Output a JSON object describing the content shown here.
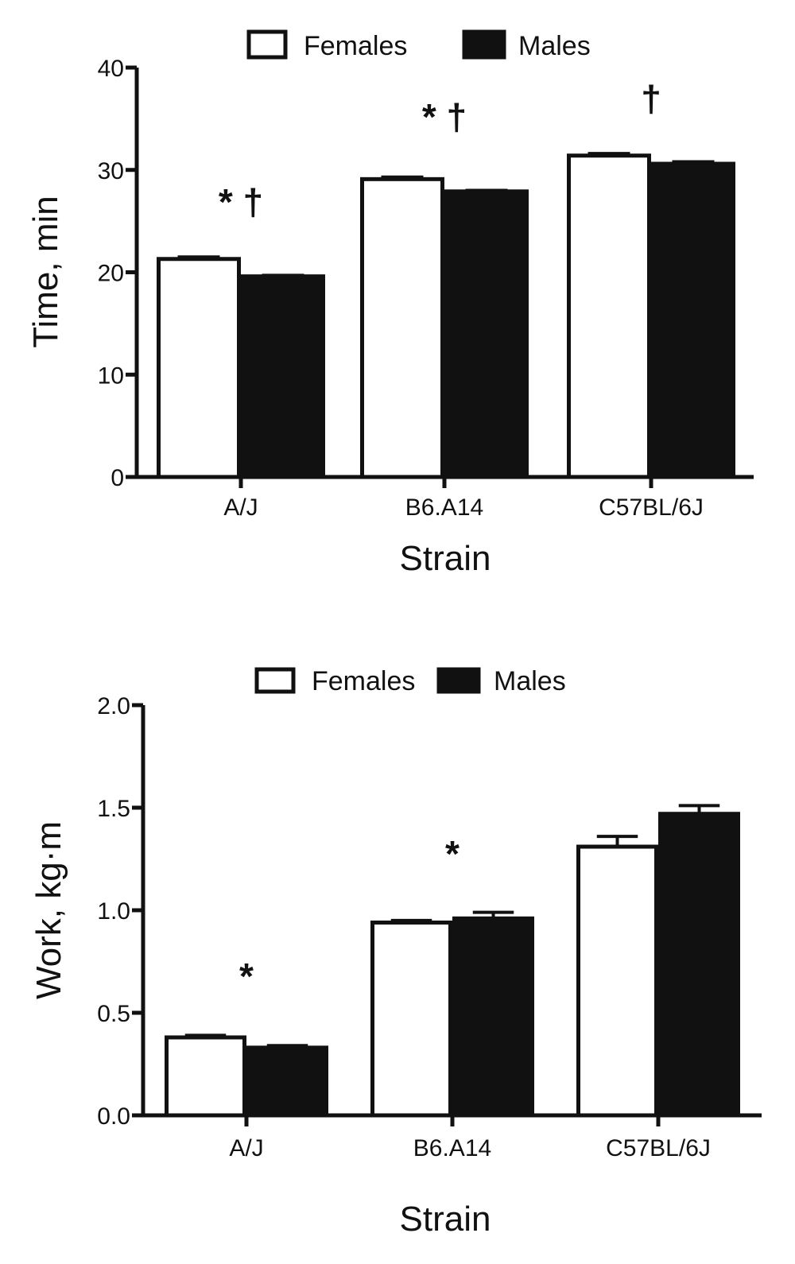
{
  "colors": {
    "ink": "#111111",
    "female_fill": "#ffffff",
    "male_fill": "#111111"
  },
  "chart_data": [
    {
      "type": "bar",
      "categories": [
        "A/J",
        "B6.A14",
        "C57BL/6J"
      ],
      "series": [
        {
          "name": "Females",
          "values": [
            21.3,
            29.1,
            31.4
          ],
          "errors": [
            0.2,
            0.2,
            0.2
          ]
        },
        {
          "name": "Males",
          "values": [
            19.6,
            27.9,
            30.6
          ],
          "errors": [
            0.1,
            0.1,
            0.2
          ]
        }
      ],
      "xlabel": "Strain",
      "ylabel": "Time, min",
      "ylim": [
        0,
        40
      ],
      "yticks": [
        0,
        10,
        20,
        30,
        40
      ],
      "ytick_labels": [
        "0",
        "10",
        "20",
        "30",
        "40"
      ],
      "legend_position": "top-center",
      "annotations": [
        "* †",
        "* †",
        "†"
      ]
    },
    {
      "type": "bar",
      "categories": [
        "A/J",
        "B6.A14",
        "C57BL/6J"
      ],
      "series": [
        {
          "name": "Females",
          "values": [
            0.38,
            0.94,
            1.31
          ],
          "errors": [
            0.01,
            0.01,
            0.05
          ]
        },
        {
          "name": "Males",
          "values": [
            0.33,
            0.96,
            1.47
          ],
          "errors": [
            0.01,
            0.03,
            0.04
          ]
        }
      ],
      "xlabel": "Strain",
      "ylabel": "Work, kg·m",
      "ylim": [
        0,
        2.0
      ],
      "yticks": [
        0,
        0.5,
        1.0,
        1.5,
        2.0
      ],
      "ytick_labels": [
        "0.0",
        "0.5",
        "1.0",
        "1.5",
        "2.0"
      ],
      "legend_position": "top-center",
      "annotations": [
        "*",
        "*",
        ""
      ]
    }
  ]
}
